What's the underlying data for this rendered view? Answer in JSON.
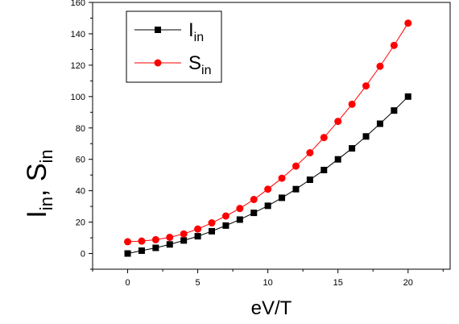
{
  "chart_data": {
    "type": "line",
    "xlabel": "eV/T",
    "ylabel_main": "I",
    "ylabel_sub": "in",
    "ylabel_sep": ", ",
    "ylabel_main2": "S",
    "ylabel_sub2": "in",
    "xlim": [
      -2.5,
      23
    ],
    "ylim": [
      -10,
      160
    ],
    "xticks": [
      0,
      5,
      10,
      15,
      20
    ],
    "yticks": [
      0,
      20,
      40,
      60,
      80,
      100,
      120,
      140,
      160
    ],
    "x": [
      0,
      1,
      2,
      3,
      4,
      5,
      6,
      7,
      8,
      9,
      10,
      11,
      12,
      13,
      14,
      15,
      16,
      17,
      18,
      19,
      20
    ],
    "series": [
      {
        "name_main": "I",
        "name_sub": "in",
        "color": "#000000",
        "marker": "square",
        "values": [
          0,
          1.8,
          3.6,
          5.8,
          8.3,
          11,
          14.2,
          17.8,
          21.6,
          25.9,
          30.4,
          35.5,
          41,
          47,
          53.2,
          60,
          67,
          74.6,
          82.7,
          91.1,
          100
        ]
      },
      {
        "name_main": "S",
        "name_sub": "in",
        "color": "#ff0000",
        "marker": "circle",
        "values": [
          7.5,
          7.9,
          8.8,
          10.3,
          12.5,
          15.6,
          19.5,
          23.9,
          28.7,
          34.4,
          41,
          48,
          55.7,
          64.2,
          73.9,
          84.2,
          95.1,
          106.8,
          119.3,
          132.6,
          146.8
        ]
      }
    ],
    "legend": "top-left",
    "grid": false
  }
}
